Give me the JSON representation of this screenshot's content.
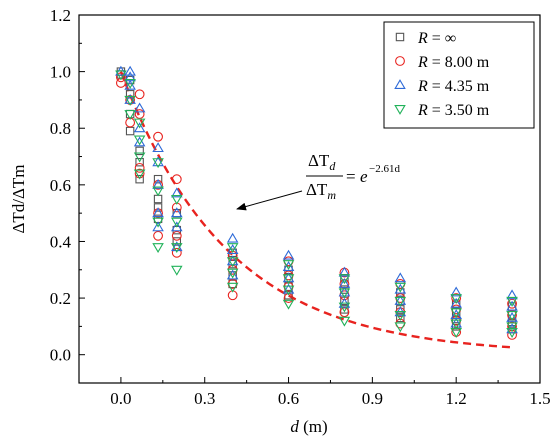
{
  "chart_data": {
    "type": "scatter",
    "xlabel_var": "d",
    "xlabel_unit": " (m)",
    "ylabel": "ΔTd/ΔTm",
    "xlim": [
      -0.15,
      1.5
    ],
    "ylim": [
      -0.1,
      1.2
    ],
    "x_ticks": [
      "0.0",
      "0.3",
      "0.6",
      "0.9",
      "1.2",
      "1.5"
    ],
    "x_tick_values": [
      0.0,
      0.3,
      0.6,
      0.9,
      1.2,
      1.5
    ],
    "y_ticks": [
      "0.0",
      "0.2",
      "0.4",
      "0.6",
      "0.8",
      "1.0",
      "1.2"
    ],
    "y_tick_values": [
      0.0,
      0.2,
      0.4,
      0.6,
      0.8,
      1.0,
      1.2
    ],
    "grid": false,
    "legend_position": "top-right",
    "series": [
      {
        "name": "R = ∞",
        "marker": "square",
        "color": "#555555",
        "points": [
          [
            0.0,
            1.0
          ],
          [
            0.0,
            0.99
          ],
          [
            0.033,
            0.97
          ],
          [
            0.033,
            0.92
          ],
          [
            0.033,
            0.85
          ],
          [
            0.033,
            0.79
          ],
          [
            0.067,
            0.72
          ],
          [
            0.067,
            0.68
          ],
          [
            0.067,
            0.62
          ],
          [
            0.133,
            0.62
          ],
          [
            0.133,
            0.55
          ],
          [
            0.133,
            0.52
          ],
          [
            0.133,
            0.48
          ],
          [
            0.2,
            0.5
          ],
          [
            0.2,
            0.44
          ],
          [
            0.2,
            0.4
          ],
          [
            0.4,
            0.36
          ],
          [
            0.4,
            0.32
          ],
          [
            0.4,
            0.28
          ],
          [
            0.4,
            0.25
          ],
          [
            0.6,
            0.3
          ],
          [
            0.6,
            0.27
          ],
          [
            0.6,
            0.24
          ],
          [
            0.6,
            0.21
          ],
          [
            0.8,
            0.27
          ],
          [
            0.8,
            0.23
          ],
          [
            0.8,
            0.19
          ],
          [
            0.8,
            0.16
          ],
          [
            1.0,
            0.22
          ],
          [
            1.0,
            0.19
          ],
          [
            1.0,
            0.16
          ],
          [
            1.0,
            0.13
          ],
          [
            1.2,
            0.18
          ],
          [
            1.2,
            0.15
          ],
          [
            1.2,
            0.12
          ],
          [
            1.2,
            0.1
          ],
          [
            1.4,
            0.17
          ],
          [
            1.4,
            0.14
          ],
          [
            1.4,
            0.11
          ],
          [
            1.4,
            0.09
          ]
        ]
      },
      {
        "name": "R = 8.00 m",
        "marker": "circle",
        "color": "#e8231f",
        "points": [
          [
            0.0,
            0.98
          ],
          [
            0.0,
            0.96
          ],
          [
            0.033,
            0.9
          ],
          [
            0.033,
            0.82
          ],
          [
            0.067,
            0.92
          ],
          [
            0.067,
            0.85
          ],
          [
            0.067,
            0.66
          ],
          [
            0.067,
            0.64
          ],
          [
            0.133,
            0.77
          ],
          [
            0.133,
            0.6
          ],
          [
            0.133,
            0.5
          ],
          [
            0.133,
            0.42
          ],
          [
            0.2,
            0.62
          ],
          [
            0.2,
            0.52
          ],
          [
            0.2,
            0.42
          ],
          [
            0.2,
            0.36
          ],
          [
            0.4,
            0.35
          ],
          [
            0.4,
            0.3
          ],
          [
            0.4,
            0.25
          ],
          [
            0.4,
            0.21
          ],
          [
            0.6,
            0.33
          ],
          [
            0.6,
            0.28
          ],
          [
            0.6,
            0.24
          ],
          [
            0.6,
            0.2
          ],
          [
            0.8,
            0.29
          ],
          [
            0.8,
            0.25
          ],
          [
            0.8,
            0.21
          ],
          [
            0.8,
            0.15
          ],
          [
            1.0,
            0.25
          ],
          [
            1.0,
            0.2
          ],
          [
            1.0,
            0.15
          ],
          [
            1.0,
            0.11
          ],
          [
            1.2,
            0.2
          ],
          [
            1.2,
            0.16
          ],
          [
            1.2,
            0.12
          ],
          [
            1.2,
            0.08
          ],
          [
            1.4,
            0.18
          ],
          [
            1.4,
            0.14
          ],
          [
            1.4,
            0.1
          ],
          [
            1.4,
            0.07
          ]
        ]
      },
      {
        "name": "R = 4.35 m",
        "marker": "triangle-up",
        "color": "#2f6bd8",
        "points": [
          [
            0.0,
            1.0
          ],
          [
            0.033,
            1.0
          ],
          [
            0.033,
            0.98
          ],
          [
            0.033,
            0.95
          ],
          [
            0.033,
            0.9
          ],
          [
            0.067,
            0.87
          ],
          [
            0.067,
            0.8
          ],
          [
            0.067,
            0.75
          ],
          [
            0.133,
            0.73
          ],
          [
            0.133,
            0.68
          ],
          [
            0.133,
            0.6
          ],
          [
            0.133,
            0.5
          ],
          [
            0.133,
            0.45
          ],
          [
            0.2,
            0.57
          ],
          [
            0.2,
            0.5
          ],
          [
            0.2,
            0.45
          ],
          [
            0.2,
            0.38
          ],
          [
            0.4,
            0.41
          ],
          [
            0.4,
            0.37
          ],
          [
            0.4,
            0.33
          ],
          [
            0.4,
            0.28
          ],
          [
            0.6,
            0.35
          ],
          [
            0.6,
            0.31
          ],
          [
            0.6,
            0.27
          ],
          [
            0.6,
            0.23
          ],
          [
            0.8,
            0.29
          ],
          [
            0.8,
            0.25
          ],
          [
            0.8,
            0.22
          ],
          [
            0.8,
            0.18
          ],
          [
            1.0,
            0.27
          ],
          [
            1.0,
            0.23
          ],
          [
            1.0,
            0.19
          ],
          [
            1.0,
            0.15
          ],
          [
            1.2,
            0.22
          ],
          [
            1.2,
            0.18
          ],
          [
            1.2,
            0.14
          ],
          [
            1.2,
            0.11
          ],
          [
            1.4,
            0.21
          ],
          [
            1.4,
            0.17
          ],
          [
            1.4,
            0.13
          ],
          [
            1.4,
            0.09
          ]
        ]
      },
      {
        "name": "R = 3.50 m",
        "marker": "triangle-down",
        "color": "#21b25a",
        "points": [
          [
            0.0,
            0.99
          ],
          [
            0.033,
            0.96
          ],
          [
            0.033,
            0.9
          ],
          [
            0.033,
            0.85
          ],
          [
            0.067,
            0.82
          ],
          [
            0.067,
            0.76
          ],
          [
            0.067,
            0.7
          ],
          [
            0.067,
            0.64
          ],
          [
            0.133,
            0.68
          ],
          [
            0.133,
            0.58
          ],
          [
            0.133,
            0.47
          ],
          [
            0.133,
            0.38
          ],
          [
            0.2,
            0.55
          ],
          [
            0.2,
            0.47
          ],
          [
            0.2,
            0.38
          ],
          [
            0.2,
            0.3
          ],
          [
            0.4,
            0.38
          ],
          [
            0.4,
            0.33
          ],
          [
            0.4,
            0.29
          ],
          [
            0.4,
            0.24
          ],
          [
            0.6,
            0.32
          ],
          [
            0.6,
            0.27
          ],
          [
            0.6,
            0.23
          ],
          [
            0.6,
            0.18
          ],
          [
            0.8,
            0.27
          ],
          [
            0.8,
            0.22
          ],
          [
            0.8,
            0.17
          ],
          [
            0.8,
            0.12
          ],
          [
            1.0,
            0.24
          ],
          [
            1.0,
            0.19
          ],
          [
            1.0,
            0.14
          ],
          [
            1.0,
            0.1
          ],
          [
            1.2,
            0.2
          ],
          [
            1.2,
            0.15
          ],
          [
            1.2,
            0.11
          ],
          [
            1.2,
            0.08
          ],
          [
            1.4,
            0.19
          ],
          [
            1.4,
            0.14
          ],
          [
            1.4,
            0.1
          ],
          [
            1.4,
            0.08
          ]
        ]
      }
    ],
    "fit_curve": {
      "name": "ΔTd/ΔTm = e^(-2.61d)",
      "coefficient": -2.61,
      "x_range": [
        0.0,
        1.4
      ],
      "color": "#e8231f",
      "style": "dashed"
    },
    "annotation": {
      "num_delta": "ΔT",
      "num_sub": "d",
      "den_delta": "ΔT",
      "den_sub": "m",
      "equals": "=",
      "base": "e",
      "exponent": "−2.61d"
    }
  }
}
